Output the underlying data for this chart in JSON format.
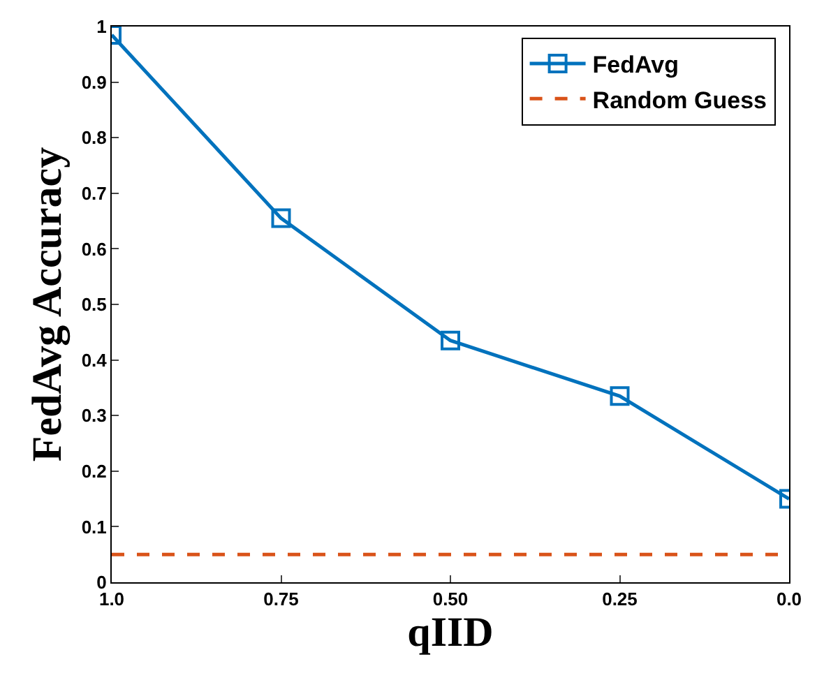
{
  "chart_data": {
    "type": "line",
    "xlabel": "qIID",
    "ylabel": "FedAvg Accuracy",
    "x": [
      1.0,
      0.75,
      0.5,
      0.25,
      0.0
    ],
    "series": [
      {
        "name": "FedAvg",
        "color": "#0072bd",
        "values": [
          0.985,
          0.655,
          0.435,
          0.335,
          0.15
        ]
      }
    ],
    "ref_lines": [
      {
        "axis": "y",
        "value": 0.05,
        "label": "Random Guess",
        "color": "#d95319",
        "line_style": "dashed"
      }
    ],
    "xlim": [
      1.0,
      0.0
    ],
    "xticks": [
      {
        "value": 1.0,
        "label": "1.0"
      },
      0.75,
      {
        "value": 0.5,
        "label": "0.50"
      },
      0.25,
      {
        "value": 0.0,
        "label": "0.0"
      }
    ],
    "ylim": [
      0,
      1
    ],
    "yticks": [
      0,
      0.1,
      0.2,
      0.3,
      0.4,
      0.5,
      0.6,
      0.7,
      0.8,
      0.9,
      1
    ],
    "legend": "top right",
    "marker": "square",
    "line_style": "solid"
  }
}
